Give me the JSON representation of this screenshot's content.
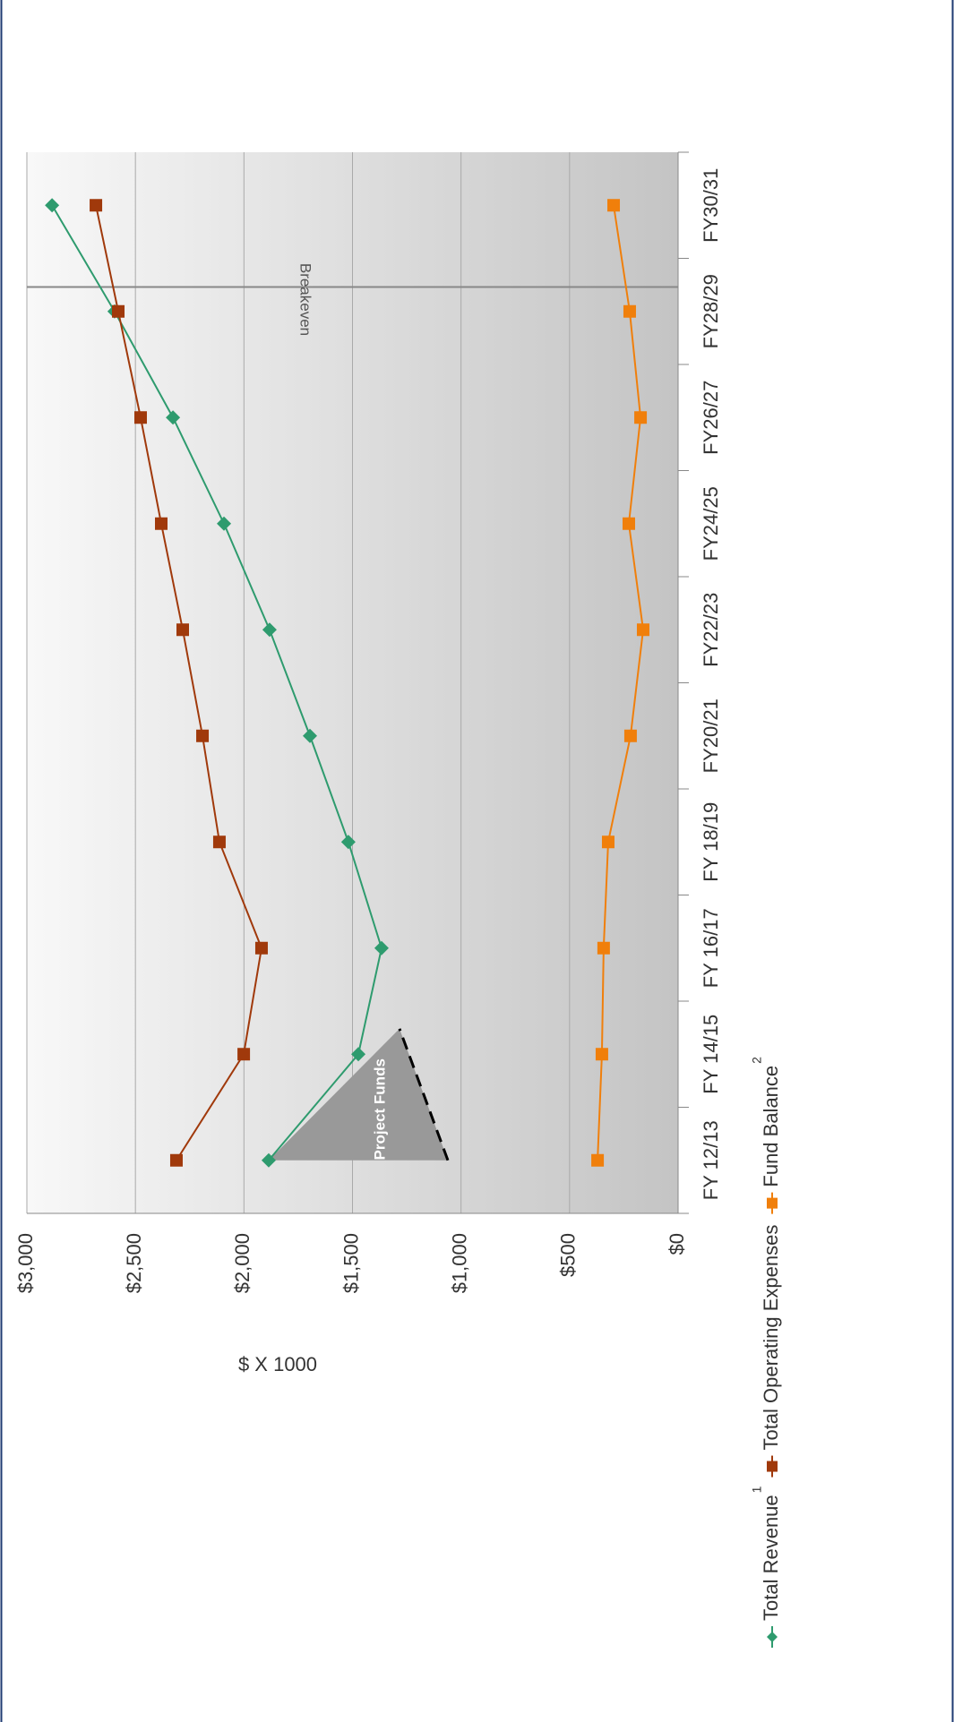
{
  "chart_data": {
    "type": "line",
    "y_axis_label": "$ X 1000",
    "categories": [
      "FY 12/13",
      "FY 14/15",
      "FY 16/17",
      "FY 18/19",
      "FY20/21",
      "FY22/23",
      "FY24/25",
      "FY26/27",
      "FY28/29",
      "FY30/31"
    ],
    "series": [
      {
        "name": "Total Revenue",
        "note": "1",
        "color": "#2e9b6e",
        "marker": "diamond",
        "values": [
          1886,
          1473,
          1366,
          1519,
          1696,
          1882,
          2092,
          2327,
          2596,
          2884
        ]
      },
      {
        "name": "Total Operating Expenses",
        "color": "#a0390b",
        "marker": "square",
        "values": [
          2311,
          2001,
          1919,
          2113,
          2191,
          2282,
          2381,
          2476,
          2579,
          2682
        ]
      },
      {
        "name": "Fund Balance",
        "note": "2",
        "color": "#f07f0b",
        "marker": "square",
        "values": [
          371,
          351,
          343,
          322,
          219,
          161,
          227,
          173,
          223,
          297
        ]
      }
    ],
    "ylim": [
      0,
      3000
    ],
    "yticks": [
      {
        "value": 0,
        "label": "$0"
      },
      {
        "value": 500,
        "label": "$500"
      },
      {
        "value": 1000,
        "label": "$1,000"
      },
      {
        "value": 1500,
        "label": "$1,500"
      },
      {
        "value": 2000,
        "label": "$2,000"
      },
      {
        "value": 2500,
        "label": "$2,500"
      },
      {
        "value": 3000,
        "label": "$3,000"
      }
    ],
    "grid": true,
    "annotations": {
      "project_funds": "Project Funds",
      "breakeven": "Breakeven"
    }
  }
}
